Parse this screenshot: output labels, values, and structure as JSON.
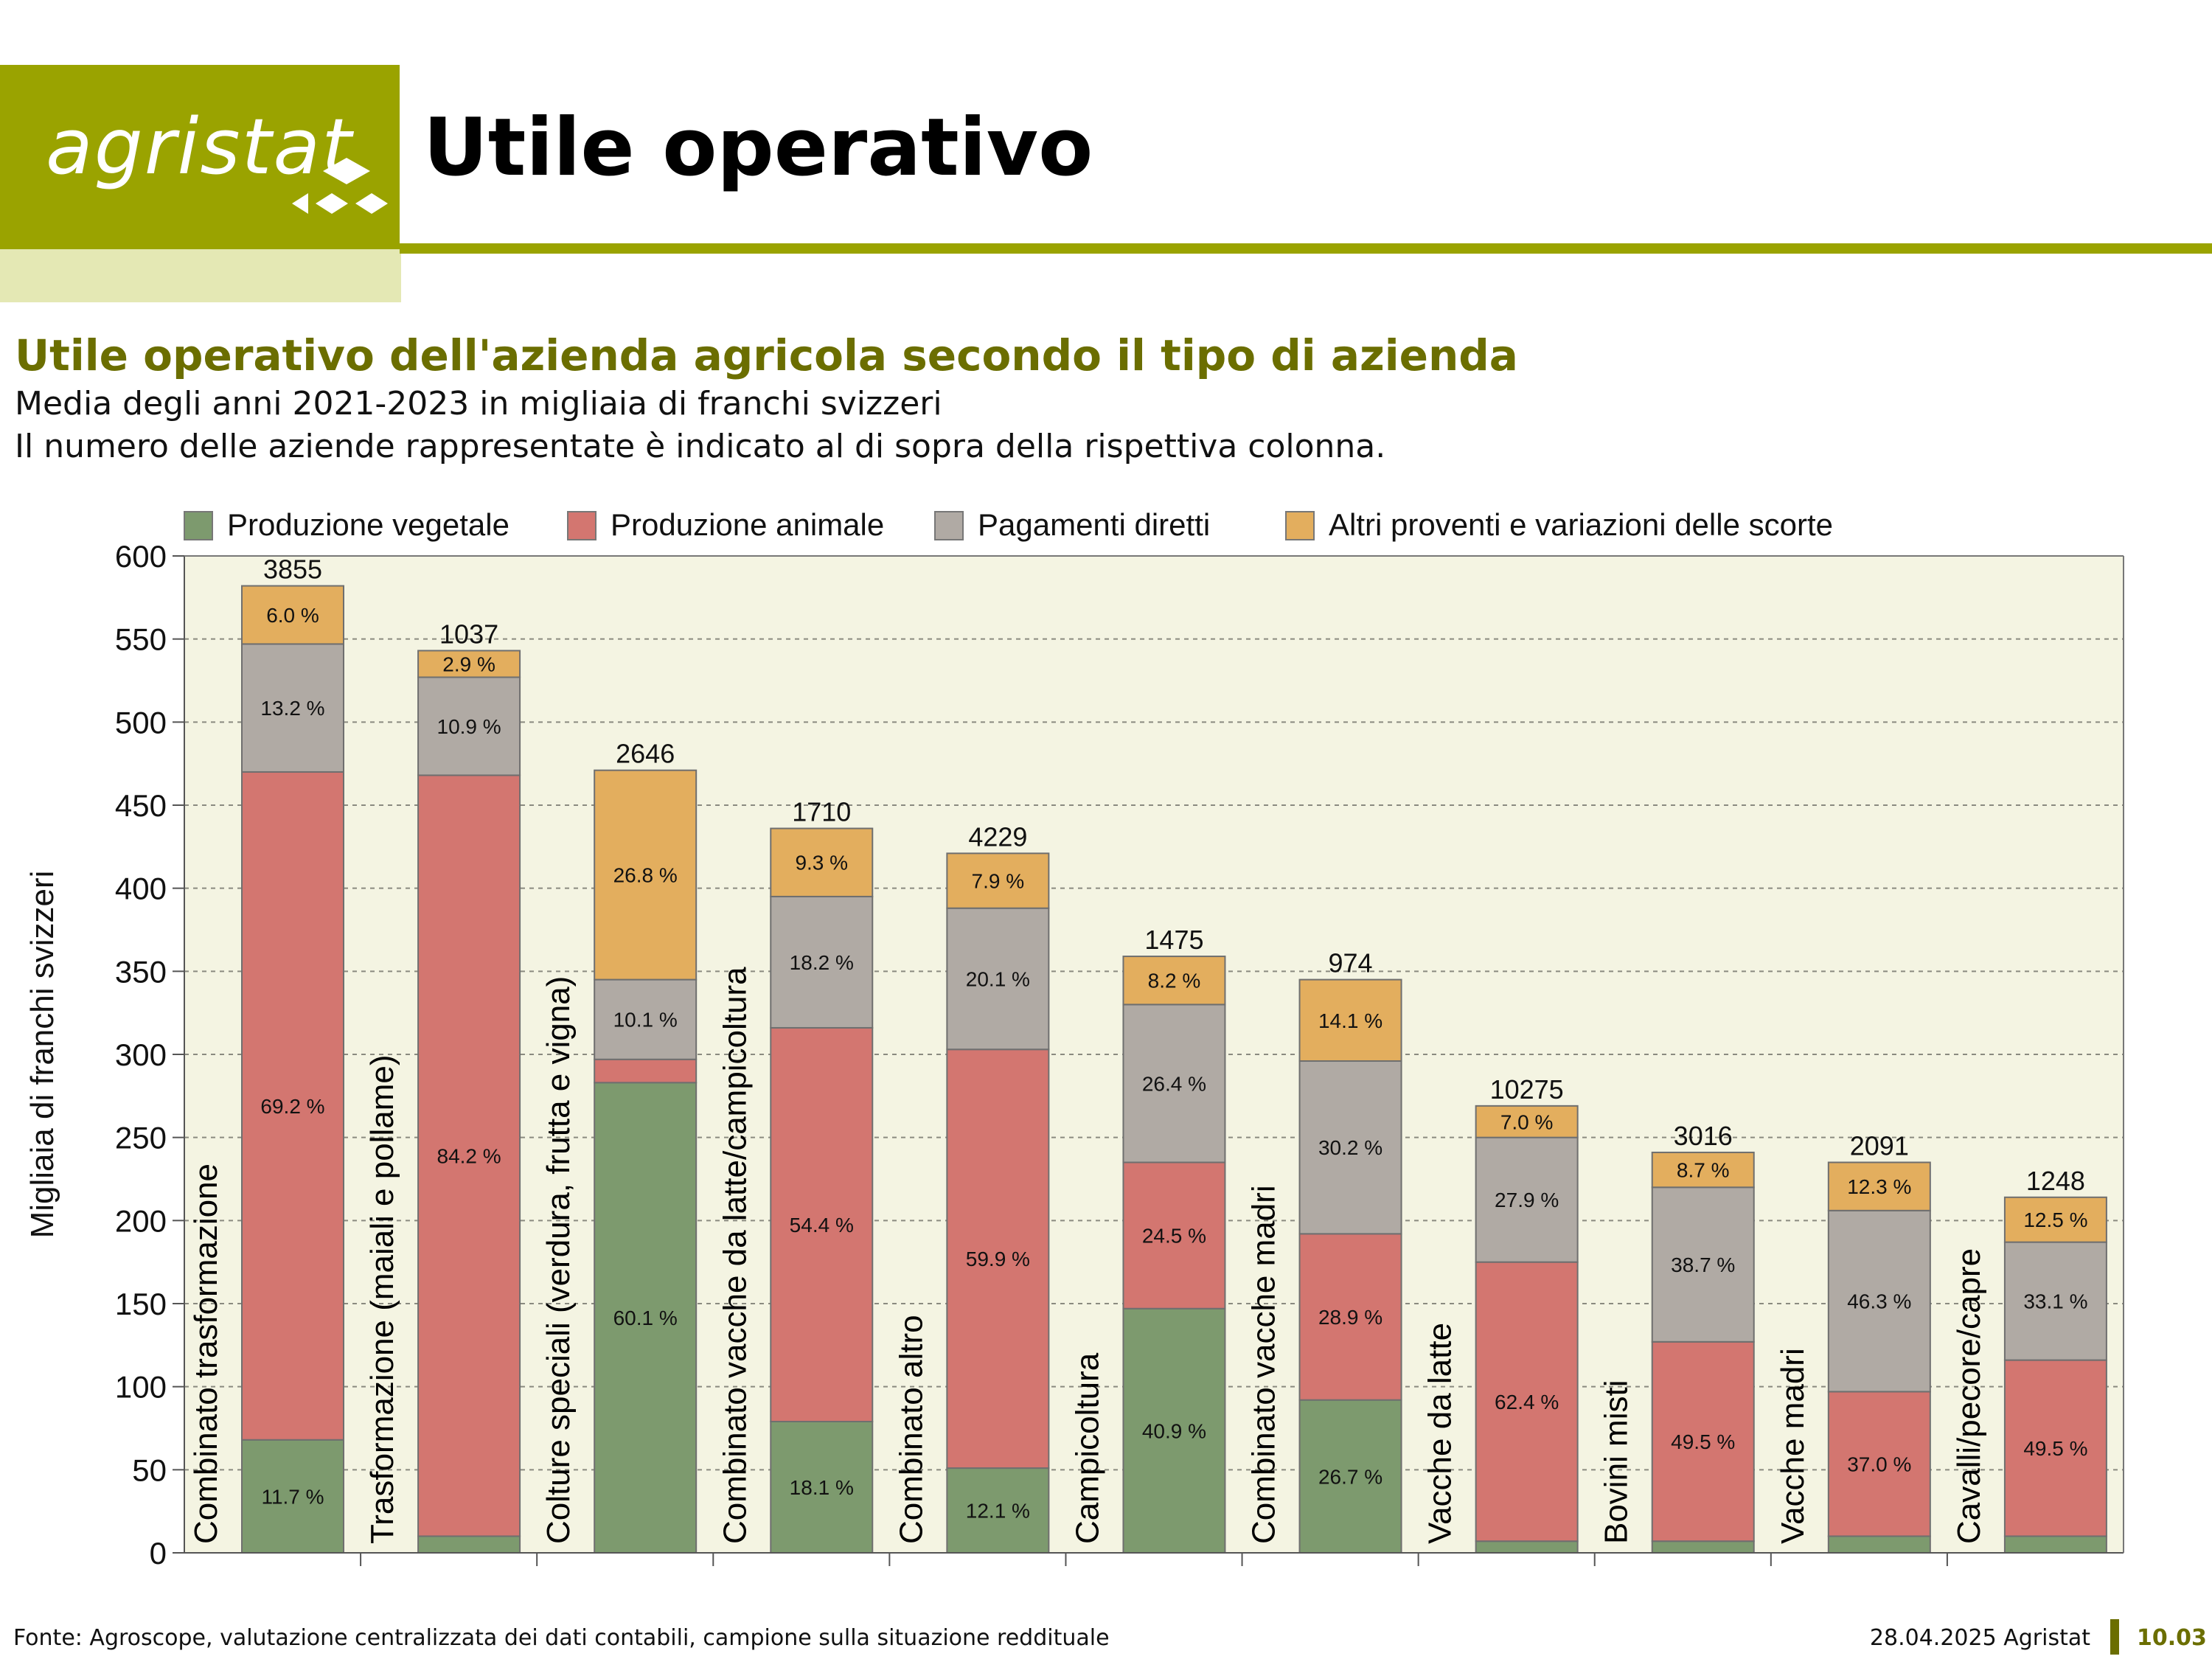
{
  "header": {
    "logo_text": "agristat",
    "title": "Utile operativo"
  },
  "chart_title": "Utile operativo dell'azienda agricola secondo il tipo di azienda",
  "chart_subtitle_1": "Media degli anni 2021-2023 in migliaia di franchi svizzeri",
  "chart_subtitle_2": "Il numero delle aziende rappresentate è indicato al di sopra della rispettiva colonna.",
  "colors": {
    "vegetale": "#7d9a6e",
    "animale": "#d37670",
    "pagamenti": "#b0aaa4",
    "altri": "#e3ae5e",
    "plot_bg": "#f4f4e2",
    "accent": "#9aa300",
    "accent_dark": "#6b6e00"
  },
  "chart_data": {
    "type": "bar",
    "stacked": true,
    "ylabel": "Migliaia di franchi svizzeri",
    "ylim": [
      0,
      600
    ],
    "yticks": [
      0,
      50,
      100,
      150,
      200,
      250,
      300,
      350,
      400,
      450,
      500,
      550,
      600
    ],
    "grid": true,
    "legend_position": "top",
    "categories": [
      "Combinato trasformazione",
      "Trasformazione (maiali e pollame)",
      "Colture speciali (verdura, frutta e vigna)",
      "Combinato vacche da latte/campicoltura",
      "Combinato altro",
      "Campicoltura",
      "Combinato vacche madri",
      "Vacche da latte",
      "Bovini misti",
      "Vacche madri",
      "Cavalli/pecore/capre"
    ],
    "counts": [
      "3855",
      "1037",
      "2646",
      "1710",
      "4229",
      "1475",
      "974",
      "10275",
      "3016",
      "2091",
      "1248"
    ],
    "series": [
      {
        "name": "Produzione vegetale",
        "color_key": "vegetale",
        "values": [
          68,
          10,
          283,
          79,
          51,
          147,
          92,
          7,
          7,
          10,
          10
        ],
        "labels": [
          "11.7 %",
          "",
          "60.1 %",
          "18.1 %",
          "12.1 %",
          "40.9 %",
          "26.7 %",
          "",
          "",
          "",
          ""
        ]
      },
      {
        "name": "Produzione animale",
        "color_key": "animale",
        "values": [
          402,
          458,
          14,
          237,
          252,
          88,
          100,
          168,
          120,
          87,
          106
        ],
        "labels": [
          "69.2 %",
          "84.2 %",
          "",
          "54.4 %",
          "59.9 %",
          "24.5 %",
          "28.9 %",
          "62.4 %",
          "49.5 %",
          "37.0 %",
          "49.5 %"
        ]
      },
      {
        "name": "Pagamenti diretti",
        "color_key": "pagamenti",
        "values": [
          77,
          59,
          48,
          79,
          85,
          95,
          104,
          75,
          93,
          109,
          71
        ],
        "labels": [
          "13.2 %",
          "10.9 %",
          "10.1 %",
          "18.2 %",
          "20.1 %",
          "26.4 %",
          "30.2 %",
          "27.9 %",
          "38.7 %",
          "46.3 %",
          "33.1 %"
        ]
      },
      {
        "name": "Altri proventi e variazioni delle scorte",
        "color_key": "altri",
        "values": [
          35,
          16,
          126,
          41,
          33,
          29,
          49,
          19,
          21,
          29,
          27
        ],
        "labels": [
          "6.0 %",
          "2.9 %",
          "26.8 %",
          "9.3 %",
          "7.9 %",
          "8.2 %",
          "14.1 %",
          "7.0 %",
          "8.7 %",
          "12.3 %",
          "12.5 %"
        ]
      }
    ]
  },
  "footer": {
    "source": "Fonte: Agroscope, valutazione centralizzata dei dati contabili, campione sulla situazione reddituale",
    "date": "28.04.2025 Agristat",
    "page": "10.03"
  }
}
